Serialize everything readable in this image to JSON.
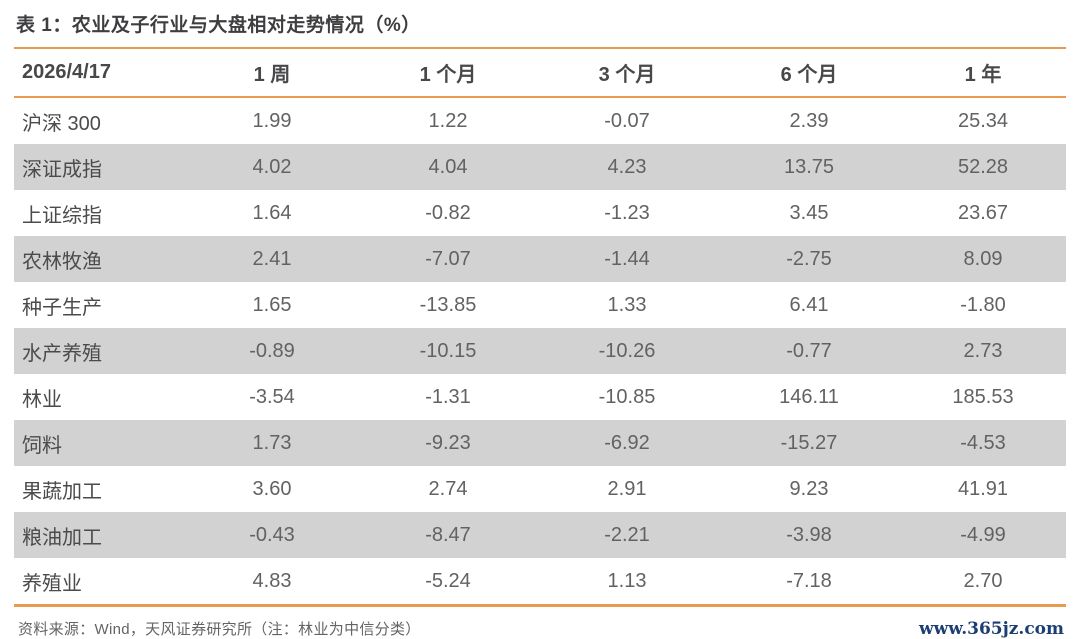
{
  "page": {
    "title": "表 1：农业及子行业与大盘相对走势情况（%）",
    "source_note": "资料来源：Wind，天风证券研究所（注：林业为中信分类）",
    "watermark_url": "www.365jz.com"
  },
  "colors": {
    "accent_orange": "#E89A50",
    "row_alt_gray": "#D2D2D2",
    "title_text": "#3E3E40",
    "header_text": "#48484A",
    "value_text": "#626264",
    "url_blue": "#1C3E73"
  },
  "table": {
    "columns": [
      "2026/4/17",
      "1 周",
      "1 个月",
      "3 个月",
      "6 个月",
      "1 年"
    ],
    "rows": [
      {
        "label": "沪深 300",
        "values": [
          "1.99",
          "1.22",
          "-0.07",
          "2.39",
          "25.34"
        ]
      },
      {
        "label": "深证成指",
        "values": [
          "4.02",
          "4.04",
          "4.23",
          "13.75",
          "52.28"
        ]
      },
      {
        "label": "上证综指",
        "values": [
          "1.64",
          "-0.82",
          "-1.23",
          "3.45",
          "23.67"
        ]
      },
      {
        "label": "农林牧渔",
        "values": [
          "2.41",
          "-7.07",
          "-1.44",
          "-2.75",
          "8.09"
        ]
      },
      {
        "label": "种子生产",
        "values": [
          "1.65",
          "-13.85",
          "1.33",
          "6.41",
          "-1.80"
        ]
      },
      {
        "label": "水产养殖",
        "values": [
          "-0.89",
          "-10.15",
          "-10.26",
          "-0.77",
          "2.73"
        ]
      },
      {
        "label": "林业",
        "values": [
          "-3.54",
          "-1.31",
          "-10.85",
          "146.11",
          "185.53"
        ]
      },
      {
        "label": "饲料",
        "values": [
          "1.73",
          "-9.23",
          "-6.92",
          "-15.27",
          "-4.53"
        ]
      },
      {
        "label": "果蔬加工",
        "values": [
          "3.60",
          "2.74",
          "2.91",
          "9.23",
          "41.91"
        ]
      },
      {
        "label": "粮油加工",
        "values": [
          "-0.43",
          "-8.47",
          "-2.21",
          "-3.98",
          "-4.99"
        ]
      },
      {
        "label": "养殖业",
        "values": [
          "4.83",
          "-5.24",
          "1.13",
          "-7.18",
          "2.70"
        ]
      }
    ]
  },
  "chart_data": {
    "type": "table",
    "title": "表 1：农业及子行业与大盘相对走势情况（%）",
    "columns": [
      "2026/4/17",
      "1 周",
      "1 个月",
      "3 个月",
      "6 个月",
      "1 年"
    ],
    "rows": [
      [
        "沪深 300",
        1.99,
        1.22,
        -0.07,
        2.39,
        25.34
      ],
      [
        "深证成指",
        4.02,
        4.04,
        4.23,
        13.75,
        52.28
      ],
      [
        "上证综指",
        1.64,
        -0.82,
        -1.23,
        3.45,
        23.67
      ],
      [
        "农林牧渔",
        2.41,
        -7.07,
        -1.44,
        -2.75,
        8.09
      ],
      [
        "种子生产",
        1.65,
        -13.85,
        1.33,
        6.41,
        -1.8
      ],
      [
        "水产养殖",
        -0.89,
        -10.15,
        -10.26,
        -0.77,
        2.73
      ],
      [
        "林业",
        -3.54,
        -1.31,
        -10.85,
        146.11,
        185.53
      ],
      [
        "饲料",
        1.73,
        -9.23,
        -6.92,
        -15.27,
        -4.53
      ],
      [
        "果蔬加工",
        3.6,
        2.74,
        2.91,
        9.23,
        41.91
      ],
      [
        "粮油加工",
        -0.43,
        -8.47,
        -2.21,
        -3.98,
        -4.99
      ],
      [
        "养殖业",
        4.83,
        -5.24,
        1.13,
        -7.18,
        2.7
      ]
    ],
    "source_note": "资料来源：Wind，天风证券研究所（注：林业为中信分类）"
  }
}
